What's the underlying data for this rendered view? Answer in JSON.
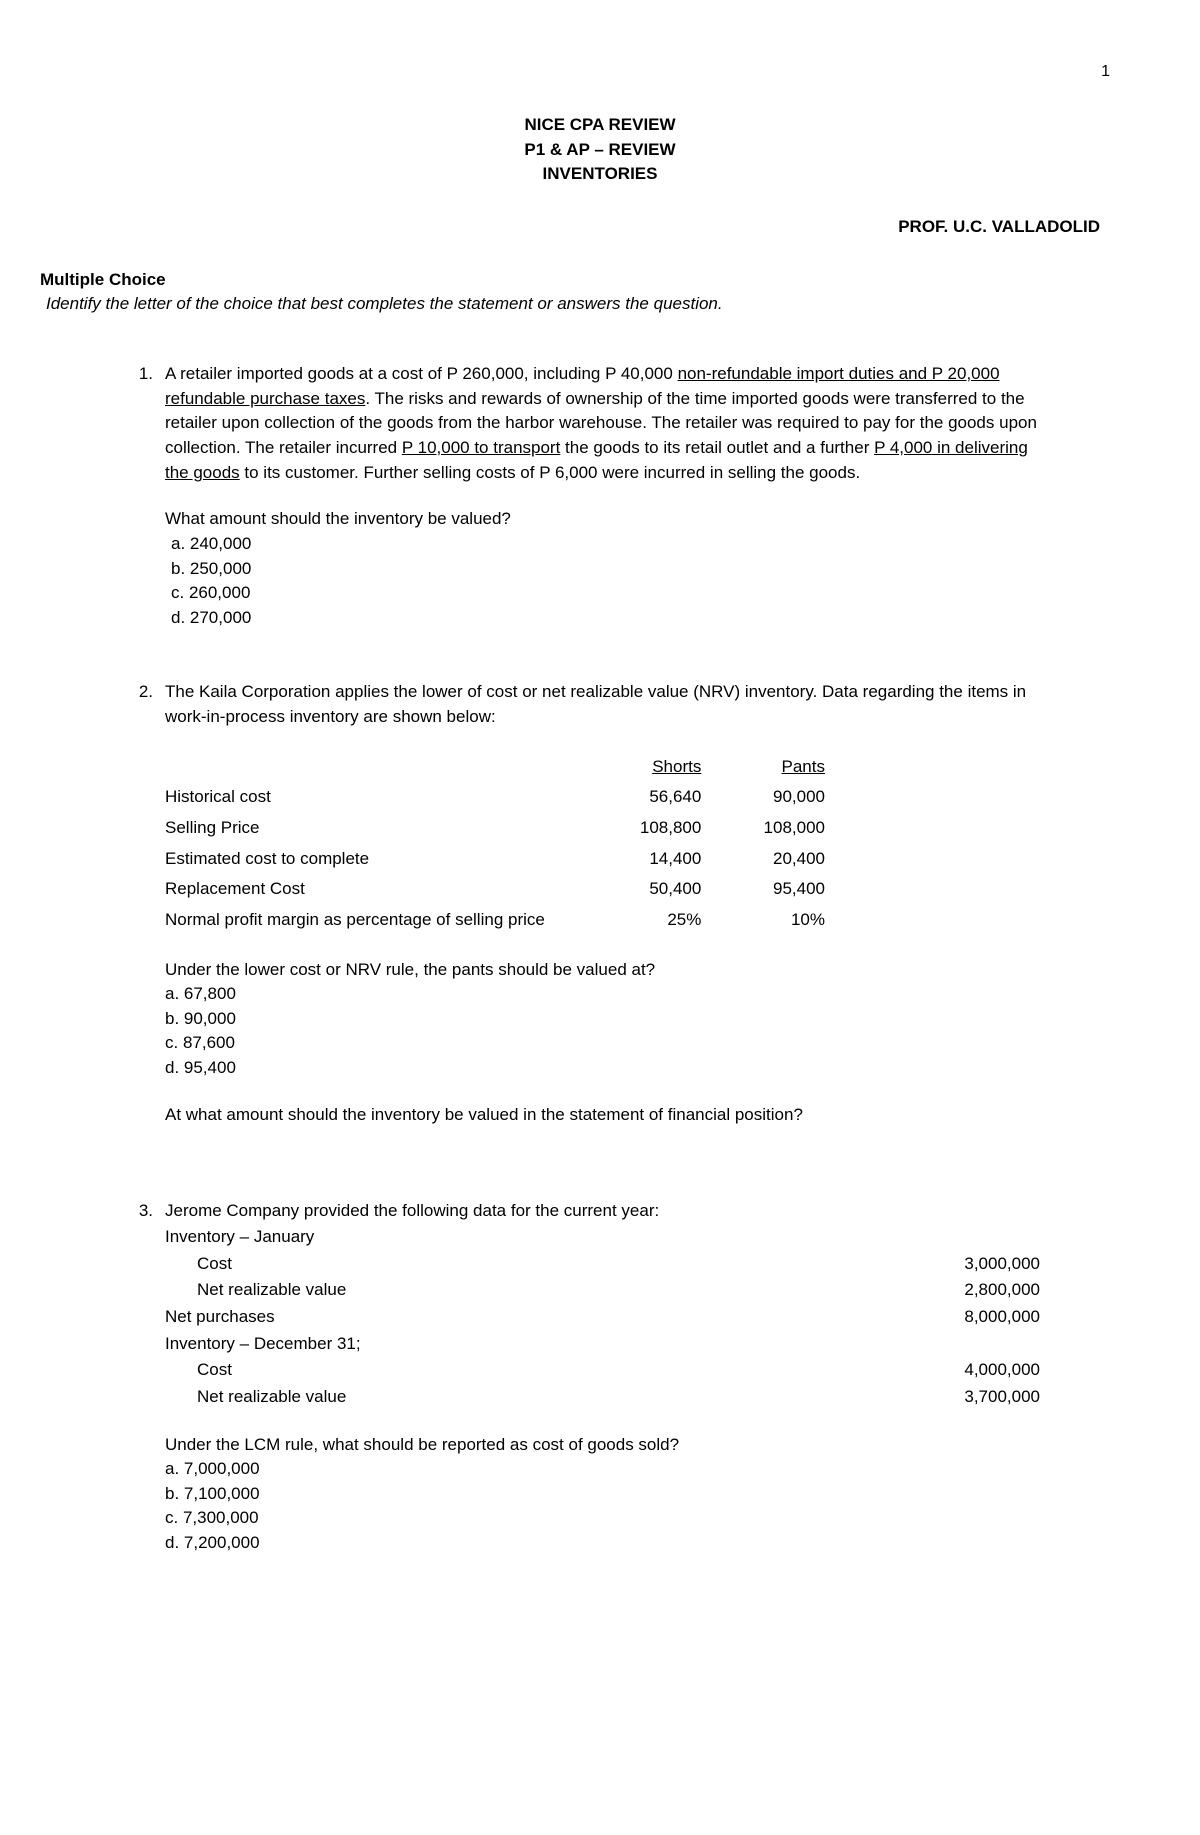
{
  "pageNumber": "1",
  "header": {
    "line1": "NICE CPA REVIEW",
    "line2": "P1 & AP – REVIEW",
    "line3": "INVENTORIES"
  },
  "professor": "PROF. U.C. VALLADOLID",
  "sectionLabel": "Multiple Choice",
  "instruction": "Identify the letter of the choice that best completes the statement or answers the question.",
  "q1": {
    "number": "1.",
    "text_a": "A retailer imported goods at a cost of P 260,000, including P 40,000 ",
    "u1": "non-refundable import duties and P 20,000 refundable purchase taxes",
    "text_b": ". The risks and rewards of ownership of the time imported goods were transferred to the retailer upon collection of the goods from the harbor warehouse. The retailer was required to pay for the goods upon collection. The retailer incurred ",
    "u2": "P 10,000 to transport",
    "text_c": " the goods to its retail outlet and a further ",
    "u3": "P 4,000 in delivering the goods",
    "text_d": " to its customer. Further selling costs of P 6,000 were incurred in selling the goods.",
    "prompt": "What amount should the inventory be valued?",
    "a": "a. 240,000",
    "b": "b. 250,000",
    "c": "c. 260,000",
    "d": "d. 270,000"
  },
  "q2": {
    "number": "2.",
    "intro": "The Kaila Corporation applies the lower of cost or net realizable value (NRV) inventory. Data regarding the items in work-in-process inventory are shown below:",
    "col1Header": "Shorts",
    "col2Header": "Pants",
    "rows": {
      "r1": {
        "label": "Historical cost",
        "c1": "56,640",
        "c2": "90,000"
      },
      "r2": {
        "label": "Selling Price",
        "c1": "108,800",
        "c2": "108,000"
      },
      "r3": {
        "label": "Estimated cost to complete",
        "c1": "14,400",
        "c2": "20,400"
      },
      "r4": {
        "label": "Replacement Cost",
        "c1": "50,400",
        "c2": "95,400"
      },
      "r5": {
        "label": "Normal profit margin as percentage of selling price",
        "c1": "25%",
        "c2": "10%"
      }
    },
    "prompt1": "Under the lower cost or NRV rule, the pants should be valued at?",
    "a": "a. 67,800",
    "b": "b. 90,000",
    "c": "c. 87,600",
    "d": "d. 95,400",
    "prompt2": "At what amount should the inventory be valued in the statement of financial position?"
  },
  "q3": {
    "number": "3.",
    "intro": "Jerome Company provided the following data for the current year:",
    "lines": {
      "l1": {
        "label": "Inventory – January",
        "amt": ""
      },
      "l2": {
        "label": "Cost",
        "amt": "3,000,000",
        "indent": true
      },
      "l3": {
        "label": "Net realizable value",
        "amt": "2,800,000",
        "indent": true
      },
      "l4": {
        "label": "Net purchases",
        "amt": "8,000,000"
      },
      "l5": {
        "label": "Inventory – December 31;",
        "amt": ""
      },
      "l6": {
        "label": "Cost",
        "amt": "4,000,000",
        "indent": true
      },
      "l7": {
        "label": "Net realizable value",
        "amt": "3,700,000",
        "indent": true
      }
    },
    "prompt": "Under the LCM rule, what should be reported as cost of goods sold?",
    "a": "a. 7,000,000",
    "b": "b. 7,100,000",
    "c": "c. 7,300,000",
    "d": "d. 7,200,000"
  }
}
